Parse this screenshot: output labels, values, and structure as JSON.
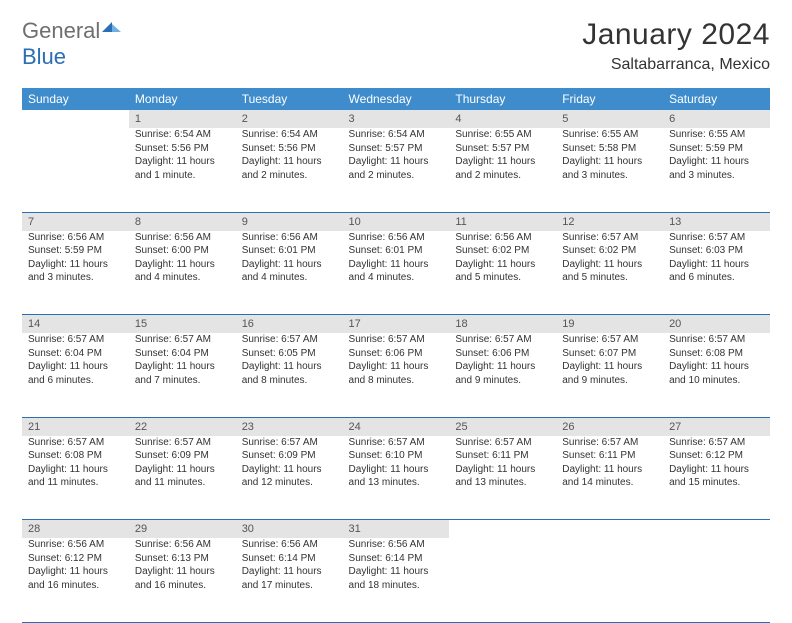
{
  "logo": {
    "part1": "General",
    "part2": "Blue"
  },
  "title": "January 2024",
  "location": "Saltabarranca, Mexico",
  "colors": {
    "header_bg": "#3e8ccc",
    "header_text": "#ffffff",
    "daynum_bg": "#e4e4e4",
    "week_divider": "#2a6eb5",
    "logo_gray": "#6f6f6f",
    "logo_blue": "#2a6eb5"
  },
  "weekdays": [
    "Sunday",
    "Monday",
    "Tuesday",
    "Wednesday",
    "Thursday",
    "Friday",
    "Saturday"
  ],
  "weeks": [
    [
      {
        "n": "",
        "sunrise": "",
        "sunset": "",
        "daylight": ""
      },
      {
        "n": "1",
        "sunrise": "Sunrise: 6:54 AM",
        "sunset": "Sunset: 5:56 PM",
        "daylight": "Daylight: 11 hours and 1 minute."
      },
      {
        "n": "2",
        "sunrise": "Sunrise: 6:54 AM",
        "sunset": "Sunset: 5:56 PM",
        "daylight": "Daylight: 11 hours and 2 minutes."
      },
      {
        "n": "3",
        "sunrise": "Sunrise: 6:54 AM",
        "sunset": "Sunset: 5:57 PM",
        "daylight": "Daylight: 11 hours and 2 minutes."
      },
      {
        "n": "4",
        "sunrise": "Sunrise: 6:55 AM",
        "sunset": "Sunset: 5:57 PM",
        "daylight": "Daylight: 11 hours and 2 minutes."
      },
      {
        "n": "5",
        "sunrise": "Sunrise: 6:55 AM",
        "sunset": "Sunset: 5:58 PM",
        "daylight": "Daylight: 11 hours and 3 minutes."
      },
      {
        "n": "6",
        "sunrise": "Sunrise: 6:55 AM",
        "sunset": "Sunset: 5:59 PM",
        "daylight": "Daylight: 11 hours and 3 minutes."
      }
    ],
    [
      {
        "n": "7",
        "sunrise": "Sunrise: 6:56 AM",
        "sunset": "Sunset: 5:59 PM",
        "daylight": "Daylight: 11 hours and 3 minutes."
      },
      {
        "n": "8",
        "sunrise": "Sunrise: 6:56 AM",
        "sunset": "Sunset: 6:00 PM",
        "daylight": "Daylight: 11 hours and 4 minutes."
      },
      {
        "n": "9",
        "sunrise": "Sunrise: 6:56 AM",
        "sunset": "Sunset: 6:01 PM",
        "daylight": "Daylight: 11 hours and 4 minutes."
      },
      {
        "n": "10",
        "sunrise": "Sunrise: 6:56 AM",
        "sunset": "Sunset: 6:01 PM",
        "daylight": "Daylight: 11 hours and 4 minutes."
      },
      {
        "n": "11",
        "sunrise": "Sunrise: 6:56 AM",
        "sunset": "Sunset: 6:02 PM",
        "daylight": "Daylight: 11 hours and 5 minutes."
      },
      {
        "n": "12",
        "sunrise": "Sunrise: 6:57 AM",
        "sunset": "Sunset: 6:02 PM",
        "daylight": "Daylight: 11 hours and 5 minutes."
      },
      {
        "n": "13",
        "sunrise": "Sunrise: 6:57 AM",
        "sunset": "Sunset: 6:03 PM",
        "daylight": "Daylight: 11 hours and 6 minutes."
      }
    ],
    [
      {
        "n": "14",
        "sunrise": "Sunrise: 6:57 AM",
        "sunset": "Sunset: 6:04 PM",
        "daylight": "Daylight: 11 hours and 6 minutes."
      },
      {
        "n": "15",
        "sunrise": "Sunrise: 6:57 AM",
        "sunset": "Sunset: 6:04 PM",
        "daylight": "Daylight: 11 hours and 7 minutes."
      },
      {
        "n": "16",
        "sunrise": "Sunrise: 6:57 AM",
        "sunset": "Sunset: 6:05 PM",
        "daylight": "Daylight: 11 hours and 8 minutes."
      },
      {
        "n": "17",
        "sunrise": "Sunrise: 6:57 AM",
        "sunset": "Sunset: 6:06 PM",
        "daylight": "Daylight: 11 hours and 8 minutes."
      },
      {
        "n": "18",
        "sunrise": "Sunrise: 6:57 AM",
        "sunset": "Sunset: 6:06 PM",
        "daylight": "Daylight: 11 hours and 9 minutes."
      },
      {
        "n": "19",
        "sunrise": "Sunrise: 6:57 AM",
        "sunset": "Sunset: 6:07 PM",
        "daylight": "Daylight: 11 hours and 9 minutes."
      },
      {
        "n": "20",
        "sunrise": "Sunrise: 6:57 AM",
        "sunset": "Sunset: 6:08 PM",
        "daylight": "Daylight: 11 hours and 10 minutes."
      }
    ],
    [
      {
        "n": "21",
        "sunrise": "Sunrise: 6:57 AM",
        "sunset": "Sunset: 6:08 PM",
        "daylight": "Daylight: 11 hours and 11 minutes."
      },
      {
        "n": "22",
        "sunrise": "Sunrise: 6:57 AM",
        "sunset": "Sunset: 6:09 PM",
        "daylight": "Daylight: 11 hours and 11 minutes."
      },
      {
        "n": "23",
        "sunrise": "Sunrise: 6:57 AM",
        "sunset": "Sunset: 6:09 PM",
        "daylight": "Daylight: 11 hours and 12 minutes."
      },
      {
        "n": "24",
        "sunrise": "Sunrise: 6:57 AM",
        "sunset": "Sunset: 6:10 PM",
        "daylight": "Daylight: 11 hours and 13 minutes."
      },
      {
        "n": "25",
        "sunrise": "Sunrise: 6:57 AM",
        "sunset": "Sunset: 6:11 PM",
        "daylight": "Daylight: 11 hours and 13 minutes."
      },
      {
        "n": "26",
        "sunrise": "Sunrise: 6:57 AM",
        "sunset": "Sunset: 6:11 PM",
        "daylight": "Daylight: 11 hours and 14 minutes."
      },
      {
        "n": "27",
        "sunrise": "Sunrise: 6:57 AM",
        "sunset": "Sunset: 6:12 PM",
        "daylight": "Daylight: 11 hours and 15 minutes."
      }
    ],
    [
      {
        "n": "28",
        "sunrise": "Sunrise: 6:56 AM",
        "sunset": "Sunset: 6:12 PM",
        "daylight": "Daylight: 11 hours and 16 minutes."
      },
      {
        "n": "29",
        "sunrise": "Sunrise: 6:56 AM",
        "sunset": "Sunset: 6:13 PM",
        "daylight": "Daylight: 11 hours and 16 minutes."
      },
      {
        "n": "30",
        "sunrise": "Sunrise: 6:56 AM",
        "sunset": "Sunset: 6:14 PM",
        "daylight": "Daylight: 11 hours and 17 minutes."
      },
      {
        "n": "31",
        "sunrise": "Sunrise: 6:56 AM",
        "sunset": "Sunset: 6:14 PM",
        "daylight": "Daylight: 11 hours and 18 minutes."
      },
      {
        "n": "",
        "sunrise": "",
        "sunset": "",
        "daylight": ""
      },
      {
        "n": "",
        "sunrise": "",
        "sunset": "",
        "daylight": ""
      },
      {
        "n": "",
        "sunrise": "",
        "sunset": "",
        "daylight": ""
      }
    ]
  ]
}
